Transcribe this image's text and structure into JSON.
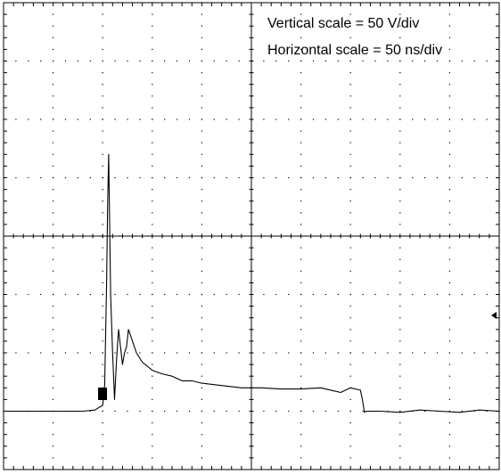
{
  "screen": {
    "vertical_scale": "Vertical scale = 50 V/div",
    "horizontal_scale": "Horizontal scale = 50 ns/div"
  },
  "colors": {
    "background": "#ffffff",
    "grid": "#000000",
    "trace": "#000000"
  },
  "icons": {
    "trigger_marker": "square-marker",
    "level_marker": "left-arrow-marker"
  },
  "chart_data": {
    "type": "line",
    "title": "",
    "xlabel": "",
    "ylabel": "",
    "annotations": [
      "Vertical scale = 50 V/div",
      "Horizontal scale = 50 ns/div"
    ],
    "x_unit": "ns",
    "y_unit": "V",
    "xlim": [
      0,
      500
    ],
    "ylim": [
      -200,
      200
    ],
    "divisions": {
      "x": 10,
      "y": 8
    },
    "grid": true,
    "series": [
      {
        "x": [
          0,
          20,
          40,
          60,
          80,
          92,
          100,
          102,
          104,
          105,
          106,
          108,
          110,
          112,
          114,
          116,
          118,
          120,
          122,
          124,
          126,
          130,
          134,
          140,
          150,
          160,
          170,
          180,
          190,
          200,
          220,
          240,
          260,
          280,
          300,
          320,
          340,
          350,
          360,
          362,
          364,
          366,
          370,
          380,
          400,
          420,
          440,
          460,
          480,
          500
        ],
        "y": [
          -150,
          -150,
          -150,
          -150,
          -150,
          -149,
          -145,
          -128,
          -40,
          30,
          70,
          -50,
          -100,
          -140,
          -105,
          -80,
          -95,
          -110,
          -100,
          -95,
          -80,
          -90,
          -100,
          -108,
          -115,
          -118,
          -120,
          -124,
          -124,
          -126,
          -128,
          -130,
          -130,
          -131,
          -131,
          -130,
          -134,
          -130,
          -132,
          -140,
          -151,
          -150,
          -150,
          -150,
          -151,
          -149,
          -150,
          -151,
          -149,
          -150
        ]
      }
    ]
  }
}
